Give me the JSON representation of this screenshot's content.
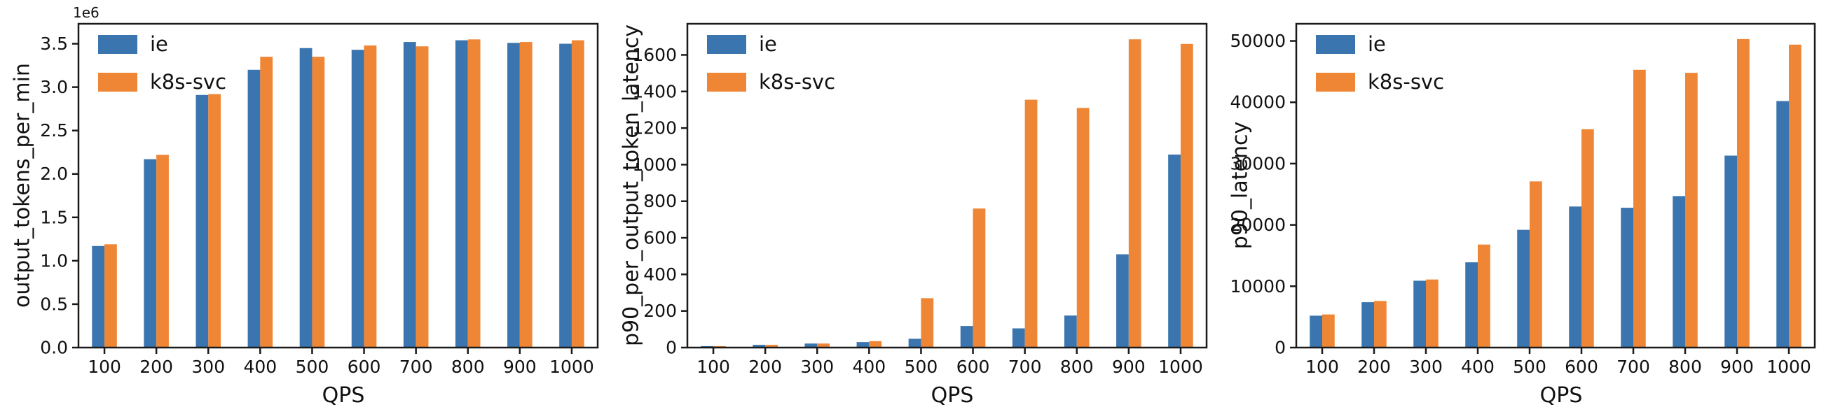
{
  "figure": {
    "background": "#ffffff",
    "text_color": "#111111",
    "axis_color": "#1a1a1a",
    "series_colors": {
      "ie": "#3b75af",
      "k8s-svc": "#ef8636"
    }
  },
  "chart_data": [
    {
      "type": "bar",
      "title": "",
      "xlabel": "QPS",
      "ylabel": "output_tokens_per_min",
      "offset_text": "1e6",
      "categories": [
        100,
        200,
        300,
        400,
        500,
        600,
        700,
        800,
        900,
        1000
      ],
      "series": [
        {
          "name": "ie",
          "color": "#3b75af",
          "values": [
            1170000,
            2170000,
            2910000,
            3200000,
            3450000,
            3430000,
            3520000,
            3540000,
            3510000,
            3500000
          ]
        },
        {
          "name": "k8s-svc",
          "color": "#ef8636",
          "values": [
            1190000,
            2220000,
            2920000,
            3350000,
            3350000,
            3480000,
            3470000,
            3550000,
            3520000,
            3540000
          ]
        }
      ],
      "ylim": [
        0,
        3730000
      ],
      "yticks": [
        0,
        500000,
        1000000,
        1500000,
        2000000,
        2500000,
        3000000,
        3500000
      ],
      "ytick_labels": [
        "0.0",
        "0.5",
        "1.0",
        "1.5",
        "2.0",
        "2.5",
        "3.0",
        "3.5"
      ],
      "legend": {
        "entries": [
          "ie",
          "k8s-svc"
        ],
        "position": "upper left"
      },
      "grid": false
    },
    {
      "type": "bar",
      "title": "",
      "xlabel": "QPS",
      "ylabel": "p90_per_output_token_latency",
      "offset_text": "",
      "categories": [
        100,
        200,
        300,
        400,
        500,
        600,
        700,
        800,
        900,
        1000
      ],
      "series": [
        {
          "name": "ie",
          "color": "#3b75af",
          "values": [
            8,
            15,
            22,
            30,
            48,
            118,
            105,
            175,
            510,
            1055
          ]
        },
        {
          "name": "k8s-svc",
          "color": "#ef8636",
          "values": [
            8,
            15,
            22,
            35,
            270,
            760,
            1355,
            1310,
            1685,
            1660
          ]
        }
      ],
      "ylim": [
        0,
        1770
      ],
      "yticks": [
        0,
        200,
        400,
        600,
        800,
        1000,
        1200,
        1400,
        1600
      ],
      "ytick_labels": [
        "0",
        "200",
        "400",
        "600",
        "800",
        "1000",
        "1200",
        "1400",
        "1600"
      ],
      "legend": {
        "entries": [
          "ie",
          "k8s-svc"
        ],
        "position": "upper left"
      },
      "grid": false
    },
    {
      "type": "bar",
      "title": "",
      "xlabel": "QPS",
      "ylabel": "p90_latency",
      "offset_text": "",
      "categories": [
        100,
        200,
        300,
        400,
        500,
        600,
        700,
        800,
        900,
        1000
      ],
      "series": [
        {
          "name": "ie",
          "color": "#3b75af",
          "values": [
            5200,
            7400,
            10900,
            13900,
            19200,
            23000,
            22800,
            24700,
            31300,
            40200
          ]
        },
        {
          "name": "k8s-svc",
          "color": "#ef8636",
          "values": [
            5400,
            7600,
            11100,
            16800,
            27100,
            35600,
            45300,
            44800,
            50300,
            49400
          ]
        }
      ],
      "ylim": [
        0,
        52800
      ],
      "yticks": [
        0,
        10000,
        20000,
        30000,
        40000,
        50000
      ],
      "ytick_labels": [
        "0",
        "10000",
        "20000",
        "30000",
        "40000",
        "50000"
      ],
      "legend": {
        "entries": [
          "ie",
          "k8s-svc"
        ],
        "position": "upper left"
      },
      "grid": false
    }
  ]
}
